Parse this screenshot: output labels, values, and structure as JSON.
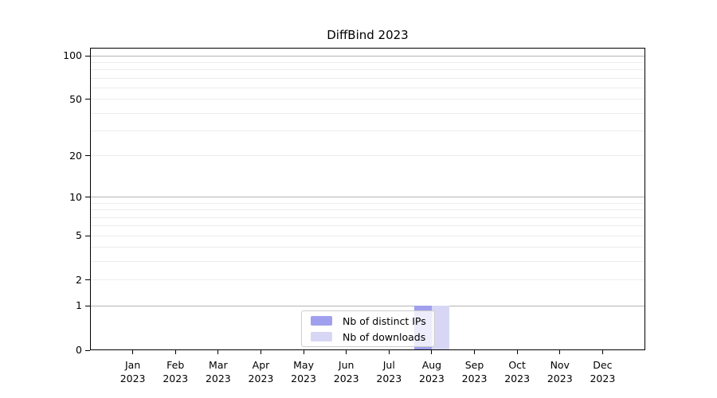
{
  "title": "DiffBind 2023",
  "chart_data": {
    "type": "bar",
    "title": "DiffBind 2023",
    "categories": [
      "Jan 2023",
      "Feb 2023",
      "Mar 2023",
      "Apr 2023",
      "May 2023",
      "Jun 2023",
      "Jul 2023",
      "Aug 2023",
      "Sep 2023",
      "Oct 2023",
      "Nov 2023",
      "Dec 2023"
    ],
    "series": [
      {
        "name": "Nb of distinct IPs",
        "color": "#a0a0ee",
        "values": [
          0,
          0,
          0,
          0,
          0,
          0,
          0,
          1,
          0,
          0,
          0,
          0
        ]
      },
      {
        "name": "Nb of downloads",
        "color": "#d7d7f5",
        "values": [
          0,
          0,
          0,
          0,
          0,
          0,
          0,
          1,
          0,
          0,
          0,
          0
        ]
      }
    ],
    "xlabel": "",
    "ylabel": "",
    "yscale": "log1p",
    "yticks": [
      0,
      1,
      2,
      5,
      10,
      20,
      50,
      100
    ],
    "minor_gridline_values": [
      3,
      4,
      6,
      7,
      8,
      9,
      30,
      40,
      60,
      70,
      80,
      90
    ],
    "ylim": [
      0,
      113
    ],
    "grid": "horizontal",
    "legend_position": "lower-center-inside"
  }
}
